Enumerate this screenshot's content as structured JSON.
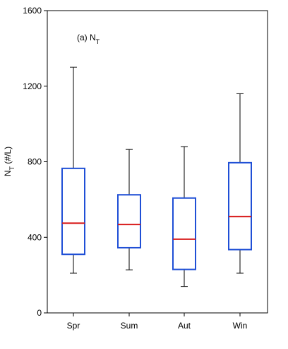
{
  "chart_data": {
    "type": "box",
    "panel_label": {
      "prefix": "(a) N",
      "subscript": "T"
    },
    "ylabel": {
      "main": "N",
      "subscript": "T",
      "suffix": " (#/L)"
    },
    "ylim": [
      0,
      1600
    ],
    "yticks": [
      "0",
      "400",
      "800",
      "1200",
      "1600"
    ],
    "categories": [
      "Spr",
      "Sum",
      "Aut",
      "Win"
    ],
    "boxes": [
      {
        "category": "Spr",
        "min": 210,
        "q1": 310,
        "median": 475,
        "q3": 765,
        "max": 1300
      },
      {
        "category": "Sum",
        "min": 228,
        "q1": 345,
        "median": 468,
        "q3": 625,
        "max": 865
      },
      {
        "category": "Aut",
        "min": 140,
        "q1": 230,
        "median": 390,
        "q3": 608,
        "max": 880
      },
      {
        "category": "Win",
        "min": 210,
        "q1": 335,
        "median": 510,
        "q3": 795,
        "max": 1160
      }
    ],
    "colors": {
      "box": "#1f4fd6",
      "median": "#d81b1b",
      "whisker": "#000000",
      "axis": "#000000"
    },
    "grid": false,
    "legend": "none"
  }
}
